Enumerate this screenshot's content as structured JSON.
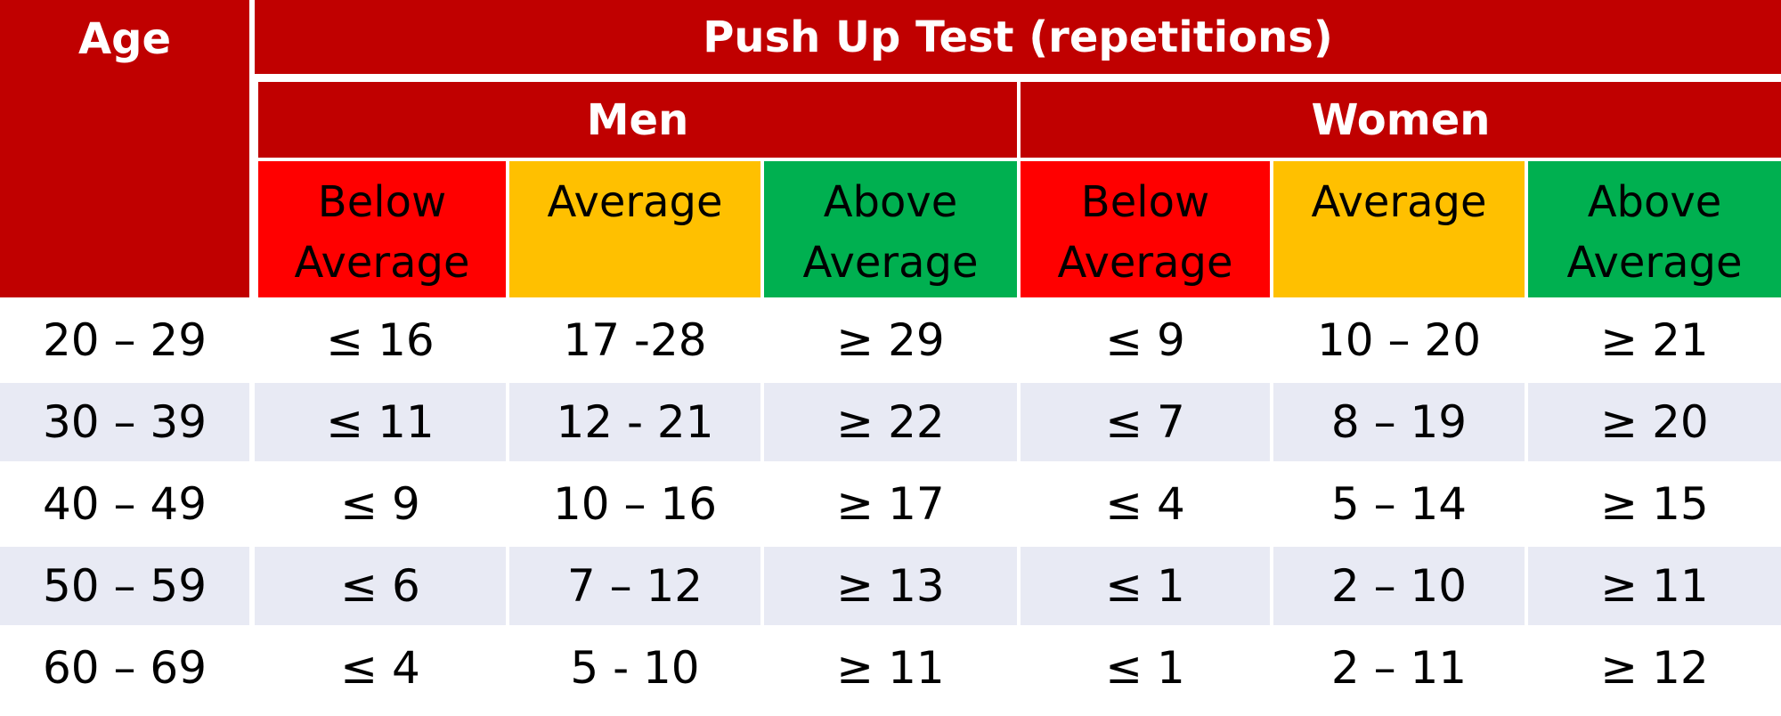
{
  "header": {
    "age": "Age",
    "title": "Push Up Test (repetitions)",
    "groups": [
      "Men",
      "Women"
    ],
    "categories": [
      [
        "Below",
        "Average"
      ],
      [
        "Average"
      ],
      [
        "Above",
        "Average"
      ],
      [
        "Below",
        "Average"
      ],
      [
        "Average"
      ],
      [
        "Above",
        "Average"
      ]
    ]
  },
  "colors": {
    "header_dark_red": "#c00000",
    "below_average": "#ff0000",
    "average": "#ffc000",
    "above_average": "#00b050",
    "row_shaded": "#e8eaf4",
    "row_white": "#ffffff"
  },
  "rows": [
    [
      "20 – 29",
      "≤ 16",
      "17 -28",
      "≥ 29",
      "≤ 9",
      "10 – 20",
      "≥ 21"
    ],
    [
      "30 – 39",
      "≤ 11",
      "12 - 21",
      "≥ 22",
      "≤ 7",
      "8 – 19",
      "≥ 20"
    ],
    [
      "40 – 49",
      "≤ 9",
      "10 – 16",
      "≥ 17",
      "≤ 4",
      "5 – 14",
      "≥ 15"
    ],
    [
      "50 – 59",
      "≤ 6",
      "7 – 12",
      "≥ 13",
      "≤ 1",
      "2 – 10",
      "≥ 11"
    ],
    [
      "60 – 69",
      "≤ 4",
      "5 - 10",
      "≥ 11",
      "≤ 1",
      "2 – 11",
      "≥ 12"
    ]
  ]
}
